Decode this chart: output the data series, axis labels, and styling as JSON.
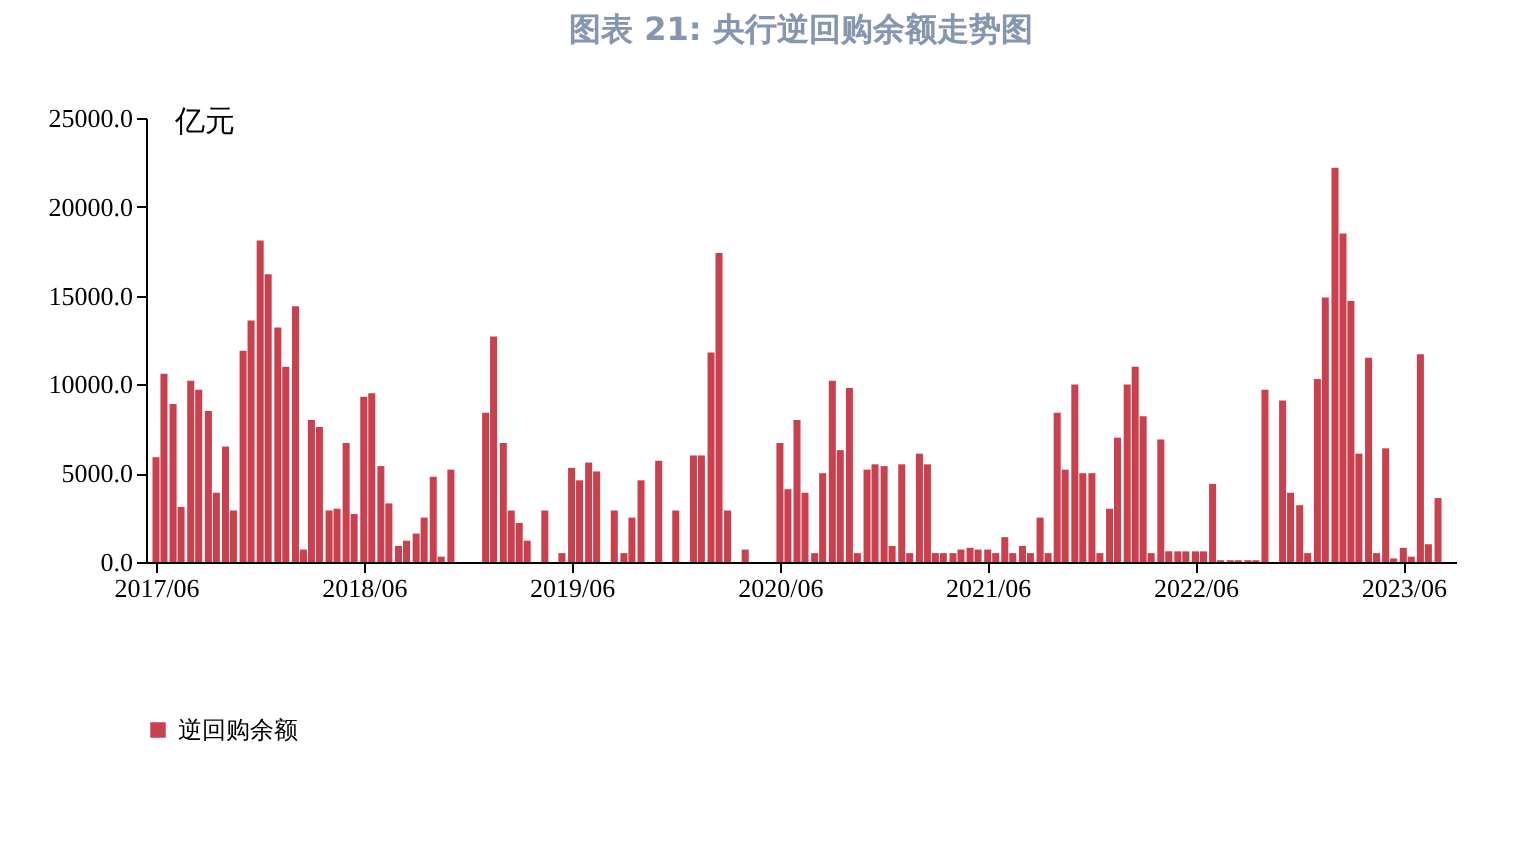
{
  "chart_data": {
    "type": "bar",
    "title": "图表 21: 央行逆回购余额走势图",
    "ylabel": "亿元",
    "x": [
      "2017-06-01",
      "2017-06-15",
      "2017-07-01",
      "2017-07-15",
      "2017-08-01",
      "2017-08-15",
      "2017-09-01",
      "2017-09-15",
      "2017-10-01",
      "2017-10-15",
      "2017-11-01",
      "2017-11-15",
      "2017-12-01",
      "2017-12-15",
      "2018-01-01",
      "2018-01-15",
      "2018-02-01",
      "2018-02-15",
      "2018-03-01",
      "2018-03-15",
      "2018-04-01",
      "2018-04-15",
      "2018-05-01",
      "2018-05-15",
      "2018-06-01",
      "2018-06-15",
      "2018-07-01",
      "2018-07-15",
      "2018-08-01",
      "2018-08-15",
      "2018-09-01",
      "2018-09-15",
      "2018-10-01",
      "2018-10-15",
      "2018-11-01",
      "2018-11-15",
      "2018-12-01",
      "2018-12-15",
      "2019-01-01",
      "2019-01-15",
      "2019-02-01",
      "2019-02-15",
      "2019-03-01",
      "2019-03-15",
      "2019-04-01",
      "2019-04-15",
      "2019-05-01",
      "2019-05-15",
      "2019-06-01",
      "2019-06-15",
      "2019-07-01",
      "2019-07-15",
      "2019-08-01",
      "2019-08-15",
      "2019-09-01",
      "2019-09-15",
      "2019-10-01",
      "2019-10-15",
      "2019-11-01",
      "2019-11-15",
      "2019-12-01",
      "2019-12-15",
      "2020-01-01",
      "2020-01-15",
      "2020-02-01",
      "2020-02-15",
      "2020-03-01",
      "2020-03-15",
      "2020-04-01",
      "2020-04-15",
      "2020-05-01",
      "2020-05-15",
      "2020-06-01",
      "2020-06-15",
      "2020-07-01",
      "2020-07-15",
      "2020-08-01",
      "2020-08-15",
      "2020-09-01",
      "2020-09-15",
      "2020-10-01",
      "2020-10-15",
      "2020-11-01",
      "2020-11-15",
      "2020-12-01",
      "2020-12-15",
      "2021-01-01",
      "2021-01-15",
      "2021-02-01",
      "2021-02-15",
      "2021-03-01",
      "2021-03-15",
      "2021-04-01",
      "2021-04-15",
      "2021-05-01",
      "2021-05-15",
      "2021-06-01",
      "2021-06-15",
      "2021-07-01",
      "2021-07-15",
      "2021-08-01",
      "2021-08-15",
      "2021-09-01",
      "2021-09-15",
      "2021-10-01",
      "2021-10-15",
      "2021-11-01",
      "2021-11-15",
      "2021-12-01",
      "2021-12-15",
      "2022-01-01",
      "2022-01-15",
      "2022-02-01",
      "2022-02-15",
      "2022-03-01",
      "2022-03-15",
      "2022-04-01",
      "2022-04-15",
      "2022-05-01",
      "2022-05-15",
      "2022-06-01",
      "2022-06-15",
      "2022-07-01",
      "2022-07-15",
      "2022-08-01",
      "2022-08-15",
      "2022-09-01",
      "2022-09-15",
      "2022-10-01",
      "2022-10-15",
      "2022-11-01",
      "2022-11-15",
      "2022-12-01",
      "2022-12-15",
      "2023-01-01",
      "2023-01-15",
      "2023-02-01",
      "2023-02-15",
      "2023-03-01",
      "2023-03-15",
      "2023-04-01",
      "2023-04-15",
      "2023-05-01",
      "2023-05-15",
      "2023-06-01",
      "2023-06-15",
      "2023-07-01",
      "2023-07-15",
      "2023-08-01"
    ],
    "series": [
      {
        "name": "逆回购余额",
        "color": "#c9404f",
        "values": [
          5900,
          10600,
          8900,
          3100,
          10200,
          9700,
          8500,
          3900,
          6500,
          2900,
          11900,
          13600,
          18100,
          16200,
          13200,
          11000,
          14400,
          700,
          8000,
          7600,
          2900,
          3000,
          6700,
          2700,
          9300,
          9500,
          5400,
          3300,
          900,
          1200,
          1600,
          2500,
          4800,
          300,
          5200,
          0,
          0,
          0,
          8400,
          12700,
          6700,
          2900,
          2200,
          1200,
          0,
          2900,
          0,
          500,
          5300,
          4600,
          5600,
          5100,
          0,
          2900,
          500,
          2500,
          4600,
          0,
          5700,
          0,
          2900,
          0,
          6000,
          6000,
          11800,
          17400,
          2900,
          0,
          700,
          0,
          0,
          0,
          6700,
          4100,
          8000,
          3900,
          500,
          5000,
          10200,
          6300,
          9800,
          500,
          5200,
          5500,
          5400,
          900,
          5500,
          500,
          6100,
          5500,
          500,
          500,
          500,
          700,
          800,
          700,
          700,
          500,
          1400,
          500,
          900,
          500,
          2500,
          500,
          8400,
          5200,
          10000,
          5000,
          5000,
          500,
          3000,
          7000,
          10000,
          11000,
          8200,
          500,
          6900,
          600,
          600,
          600,
          600,
          600,
          4400,
          100,
          100,
          100,
          100,
          100,
          9700,
          0,
          9100,
          3900,
          3200,
          500,
          10300,
          14900,
          22200,
          18500,
          14700,
          6100,
          11500,
          500,
          6400,
          200,
          800,
          300,
          11700,
          1000,
          3600
        ]
      }
    ],
    "xlim": [
      "2017-06-01",
      "2023-08-15"
    ],
    "xticks": [
      {
        "value": "2017-06-01",
        "label": "2017/06"
      },
      {
        "value": "2018-06-01",
        "label": "2018/06"
      },
      {
        "value": "2019-06-01",
        "label": "2019/06"
      },
      {
        "value": "2020-06-01",
        "label": "2020/06"
      },
      {
        "value": "2021-06-01",
        "label": "2021/06"
      },
      {
        "value": "2022-06-01",
        "label": "2022/06"
      },
      {
        "value": "2023-06-01",
        "label": "2023/06"
      }
    ],
    "ylim": [
      0,
      25000
    ],
    "yticks": [
      {
        "value": 0,
        "label": "0.0"
      },
      {
        "value": 5000,
        "label": "5000.0"
      },
      {
        "value": 10000,
        "label": "10000.0"
      },
      {
        "value": 15000,
        "label": "15000.0"
      },
      {
        "value": 20000,
        "label": "20000.0"
      },
      {
        "value": 25000,
        "label": "25000.0"
      }
    ],
    "grid": false,
    "legend": "bottom"
  }
}
